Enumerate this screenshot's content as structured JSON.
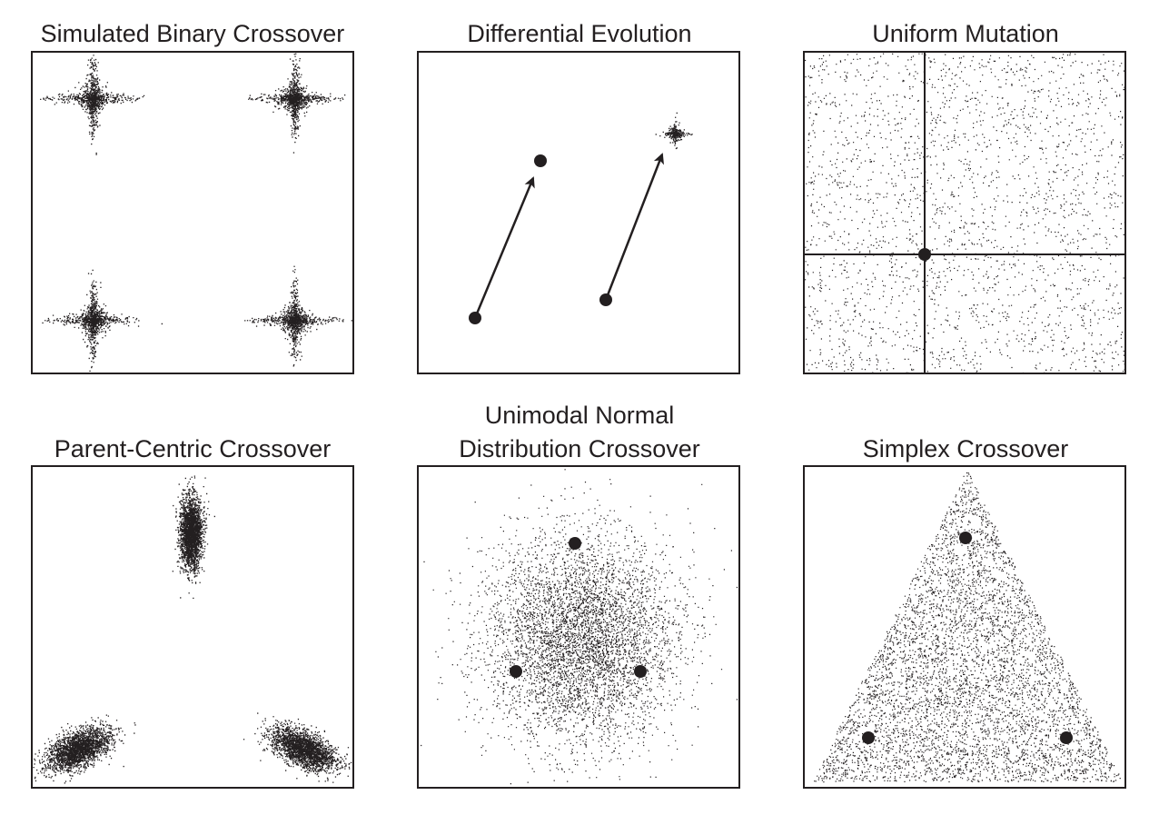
{
  "figure": {
    "colors": {
      "ink": "#231f20",
      "background": "#ffffff"
    },
    "panels": [
      {
        "id": "sbx",
        "title": "Simulated Binary Crossover",
        "title_lines": [
          "Simulated Binary Crossover"
        ],
        "operator": "simulated-binary-crossover",
        "parents": [],
        "offspring_pattern": "cross-shaped clusters at four corners"
      },
      {
        "id": "de",
        "title": "Differential Evolution",
        "title_lines": [
          "Differential Evolution"
        ],
        "operator": "differential-evolution",
        "parents": [
          "base point",
          "difference vector tip",
          "difference vector tail",
          "trial point"
        ],
        "offspring_pattern": "small cluster at translated point"
      },
      {
        "id": "um",
        "title": "Uniform Mutation",
        "title_lines": [
          "Uniform Mutation"
        ],
        "operator": "uniform-mutation",
        "parents": [
          "single parent"
        ],
        "offspring_pattern": "uniform over whole domain, crosshair lines through parent"
      },
      {
        "id": "pcx",
        "title": "Parent-Centric Crossover",
        "title_lines": [
          "Parent-Centric Crossover"
        ],
        "operator": "parent-centric-crossover",
        "parents": [],
        "offspring_pattern": "elliptical clusters around three parents"
      },
      {
        "id": "undx",
        "title": "Unimodal Normal Distribution Crossover",
        "title_lines": [
          "Unimodal Normal",
          "Distribution Crossover"
        ],
        "operator": "unimodal-normal-distribution-crossover",
        "parents": [
          "parent 1",
          "parent 2",
          "parent 3"
        ],
        "offspring_pattern": "normal cloud centered between parents"
      },
      {
        "id": "spx",
        "title": "Simplex Crossover",
        "title_lines": [
          "Simplex Crossover"
        ],
        "operator": "simplex-crossover",
        "parents": [
          "parent 1",
          "parent 2",
          "parent 3"
        ],
        "offspring_pattern": "uniform within expanded triangle"
      }
    ]
  }
}
